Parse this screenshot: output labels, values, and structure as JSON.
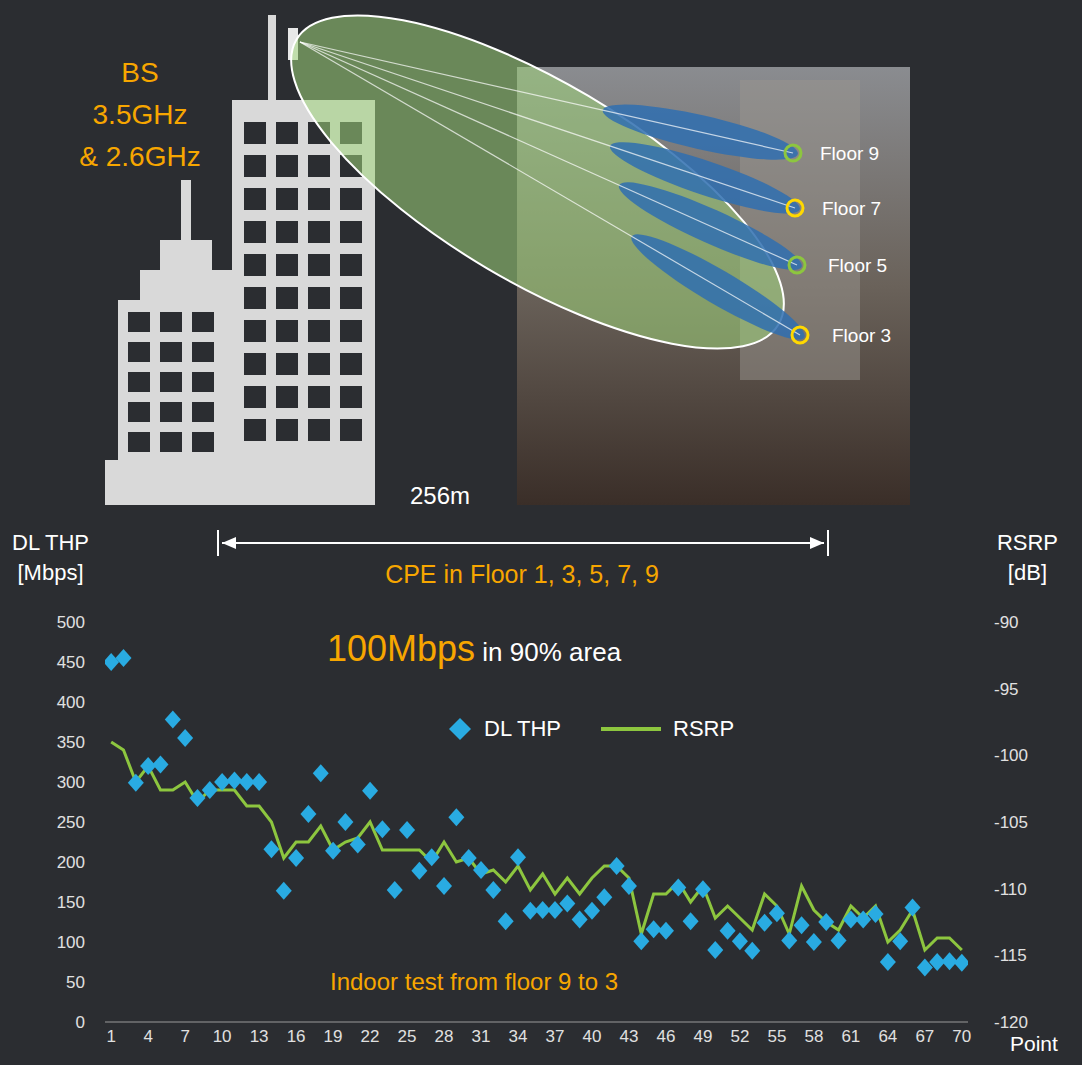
{
  "diagram": {
    "base_station": [
      "BS",
      "3.5GHz",
      "& 2.6GHz"
    ],
    "floors": [
      "Floor 9",
      "Floor 7",
      "Floor 5",
      "Floor 3"
    ],
    "distance": "256m",
    "cpe": "CPE in Floor 1, 3, 5, 7, 9"
  },
  "chart_data": {
    "type": "combo",
    "title": "100Mbps in 90% area",
    "annotations": [
      "Indoor test from floor 9 to 3"
    ],
    "x_label": "Point",
    "y_label": "DL THP [Mbps]",
    "y2_label": "RSRP [dB]",
    "x": [
      1,
      2,
      3,
      4,
      5,
      6,
      7,
      8,
      9,
      10,
      11,
      12,
      13,
      14,
      15,
      16,
      17,
      18,
      19,
      20,
      21,
      22,
      23,
      24,
      25,
      26,
      27,
      28,
      29,
      30,
      31,
      32,
      33,
      34,
      35,
      36,
      37,
      38,
      39,
      40,
      41,
      42,
      43,
      44,
      45,
      46,
      47,
      48,
      49,
      50,
      51,
      52,
      53,
      54,
      55,
      56,
      57,
      58,
      59,
      60,
      61,
      62,
      63,
      64,
      65,
      66,
      67,
      68,
      69,
      70
    ],
    "xlim": [
      0.5,
      70.5
    ],
    "xticks": [
      1,
      4,
      7,
      10,
      13,
      16,
      19,
      22,
      25,
      28,
      31,
      34,
      37,
      40,
      43,
      46,
      49,
      52,
      55,
      58,
      61,
      64,
      67,
      70
    ],
    "ylim": [
      0,
      500
    ],
    "yticks": [
      0,
      50,
      100,
      150,
      200,
      250,
      300,
      350,
      400,
      450,
      500
    ],
    "y2lim": [
      -120,
      -90
    ],
    "y2ticks": [
      -120,
      -115,
      -110,
      -105,
      -100,
      -95,
      -90
    ],
    "legend": "top",
    "series": [
      {
        "name": "DL THP",
        "type": "scatter",
        "marker": "diamond",
        "color": "#29abe2",
        "values": [
          450,
          455,
          299,
          320,
          322,
          378,
          355,
          280,
          290,
          300,
          302,
          300,
          300,
          216,
          164,
          205,
          260,
          311,
          214,
          250,
          222,
          289,
          241,
          165,
          240,
          189,
          206,
          170,
          256,
          205,
          190,
          165,
          126,
          206,
          139,
          140,
          140,
          148,
          128,
          139,
          156,
          195,
          170,
          101,
          116,
          114,
          168,
          126,
          166,
          90,
          114,
          101,
          89,
          124,
          136,
          102,
          121,
          100,
          125,
          102,
          128,
          128,
          135,
          75,
          101,
          143,
          68,
          75,
          76,
          74
        ]
      },
      {
        "name": "RSRP",
        "type": "line",
        "color": "#8dc63f",
        "axis": "y2",
        "values": [
          -99.0,
          -99.6,
          -102.0,
          -100.8,
          -102.6,
          -102.6,
          -102.0,
          -103.5,
          -102.6,
          -102.6,
          -102.6,
          -103.8,
          -103.8,
          -105.0,
          -107.7,
          -106.5,
          -106.5,
          -105.3,
          -107.1,
          -106.5,
          -106.2,
          -105.0,
          -107.1,
          -107.1,
          -107.1,
          -107.1,
          -108.0,
          -106.5,
          -108.0,
          -107.7,
          -108.9,
          -108.6,
          -109.5,
          -108.3,
          -110.1,
          -108.9,
          -110.4,
          -109.2,
          -110.4,
          -109.2,
          -108.3,
          -108.3,
          -109.2,
          -113.4,
          -110.4,
          -110.4,
          -109.5,
          -111.0,
          -109.8,
          -112.2,
          -111.3,
          -112.2,
          -113.1,
          -110.4,
          -111.3,
          -113.4,
          -109.8,
          -111.6,
          -112.5,
          -113.1,
          -111.3,
          -112.2,
          -111.3,
          -114.0,
          -113.1,
          -111.6,
          -114.6,
          -113.7,
          -113.7,
          -114.6
        ]
      }
    ]
  }
}
